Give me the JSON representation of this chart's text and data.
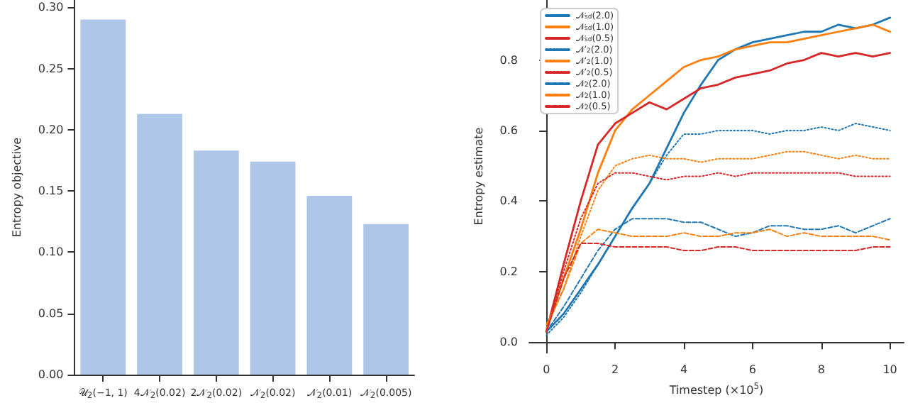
{
  "chart_data": [
    {
      "type": "bar",
      "ylabel": "Entropy objective",
      "categories": [
        "𝒰$_{2}$(−1, 1)",
        "4𝒩$_{2}$(0.02)",
        "2𝒩$_{2}$(0.02)",
        "𝒩$_{2}$(0.02)",
        "𝒩$_{2}$(0.01)",
        "𝒩$_{2}$(0.005)"
      ],
      "values": [
        0.29,
        0.213,
        0.183,
        0.174,
        0.146,
        0.123
      ],
      "color": "#aec7e8",
      "ylim": [
        0,
        0.306
      ],
      "yticks": [
        {
          "value": 0,
          "label": "0.00"
        },
        0.05,
        {
          "value": 0.1,
          "label": "0.10"
        },
        0.15,
        {
          "value": 0.2,
          "label": "0.20"
        },
        0.25,
        {
          "value": 0.3,
          "label": "0.30"
        }
      ],
      "grid": false
    },
    {
      "type": "line",
      "xlabel": "Timestep (×10$^{5}$)",
      "ylabel": "Entropy estimate",
      "x": [
        0,
        0.5,
        1,
        1.5,
        2,
        2.5,
        3,
        3.5,
        4,
        4.5,
        5,
        5.5,
        6,
        6.5,
        7,
        7.5,
        8,
        8.5,
        9,
        9.5,
        10
      ],
      "series": [
        {
          "name": "𝒩$_{sd}$(2.0)",
          "color": "#1f77b4",
          "line_style": "solid",
          "values": [
            0.03,
            0.08,
            0.15,
            0.22,
            0.3,
            0.38,
            0.45,
            0.55,
            0.65,
            0.73,
            0.8,
            0.83,
            0.85,
            0.86,
            0.87,
            0.88,
            0.88,
            0.9,
            0.89,
            0.9,
            0.92
          ]
        },
        {
          "name": "𝒩$_{sd}$(1.0)",
          "color": "#ff7f0e",
          "line_style": "solid",
          "values": [
            0.03,
            0.18,
            0.32,
            0.48,
            0.6,
            0.66,
            0.7,
            0.74,
            0.78,
            0.8,
            0.81,
            0.83,
            0.84,
            0.85,
            0.85,
            0.86,
            0.87,
            0.88,
            0.89,
            0.9,
            0.88
          ]
        },
        {
          "name": "𝒩$_{sd}$(0.5)",
          "color": "#d62728",
          "line_style": "solid",
          "values": [
            0.03,
            0.22,
            0.4,
            0.56,
            0.62,
            0.65,
            0.68,
            0.66,
            0.69,
            0.72,
            0.73,
            0.75,
            0.76,
            0.77,
            0.79,
            0.8,
            0.82,
            0.81,
            0.82,
            0.81,
            0.82
          ]
        },
        {
          "name": "𝒩′$_{2}$(2.0)",
          "color": "#1f77b4",
          "line_style": "dotted",
          "values": [
            0.02,
            0.07,
            0.14,
            0.22,
            0.3,
            0.38,
            0.45,
            0.53,
            0.59,
            0.59,
            0.6,
            0.6,
            0.6,
            0.59,
            0.6,
            0.6,
            0.61,
            0.6,
            0.62,
            0.61,
            0.6
          ]
        },
        {
          "name": "𝒩′$_{2}$(1.0)",
          "color": "#ff7f0e",
          "line_style": "dotted",
          "values": [
            0.04,
            0.15,
            0.3,
            0.43,
            0.5,
            0.52,
            0.53,
            0.52,
            0.52,
            0.51,
            0.52,
            0.52,
            0.52,
            0.53,
            0.54,
            0.54,
            0.53,
            0.52,
            0.53,
            0.52,
            0.52
          ]
        },
        {
          "name": "𝒩′$_{2}$(0.5)",
          "color": "#d62728",
          "line_style": "dotted",
          "values": [
            0.03,
            0.2,
            0.35,
            0.45,
            0.48,
            0.48,
            0.47,
            0.46,
            0.47,
            0.47,
            0.48,
            0.47,
            0.48,
            0.48,
            0.48,
            0.48,
            0.48,
            0.48,
            0.47,
            0.47,
            0.47
          ]
        },
        {
          "name": "𝒩$_{2}$(2.0)",
          "color": "#1f77b4",
          "line_style": "dashed",
          "values": [
            0.03,
            0.1,
            0.18,
            0.26,
            0.32,
            0.35,
            0.35,
            0.35,
            0.34,
            0.34,
            0.32,
            0.3,
            0.31,
            0.33,
            0.33,
            0.32,
            0.32,
            0.33,
            0.31,
            0.33,
            0.35
          ]
        },
        {
          "name": "𝒩$_{2}$(1.0)",
          "color": "#ff7f0e",
          "line_style": "dashed",
          "values": [
            0.05,
            0.15,
            0.28,
            0.32,
            0.31,
            0.3,
            0.3,
            0.3,
            0.31,
            0.3,
            0.3,
            0.31,
            0.31,
            0.32,
            0.3,
            0.31,
            0.3,
            0.3,
            0.3,
            0.3,
            0.29
          ]
        },
        {
          "name": "𝒩$_{2}$(0.5)",
          "color": "#d62728",
          "line_style": "dashed",
          "values": [
            0.03,
            0.18,
            0.28,
            0.28,
            0.27,
            0.27,
            0.27,
            0.27,
            0.26,
            0.26,
            0.27,
            0.27,
            0.26,
            0.26,
            0.26,
            0.26,
            0.26,
            0.26,
            0.26,
            0.27,
            0.27
          ]
        }
      ],
      "xlim": [
        -0.5,
        10.4
      ],
      "xticks": [
        0,
        2,
        4,
        6,
        8,
        10
      ],
      "ylim": [
        -0.03,
        0.97
      ],
      "yticks": [
        {
          "value": 0,
          "label": "0.0"
        },
        0.2,
        0.4,
        0.6,
        0.8
      ],
      "grid": false,
      "legend": "top left",
      "marker": "none"
    }
  ]
}
